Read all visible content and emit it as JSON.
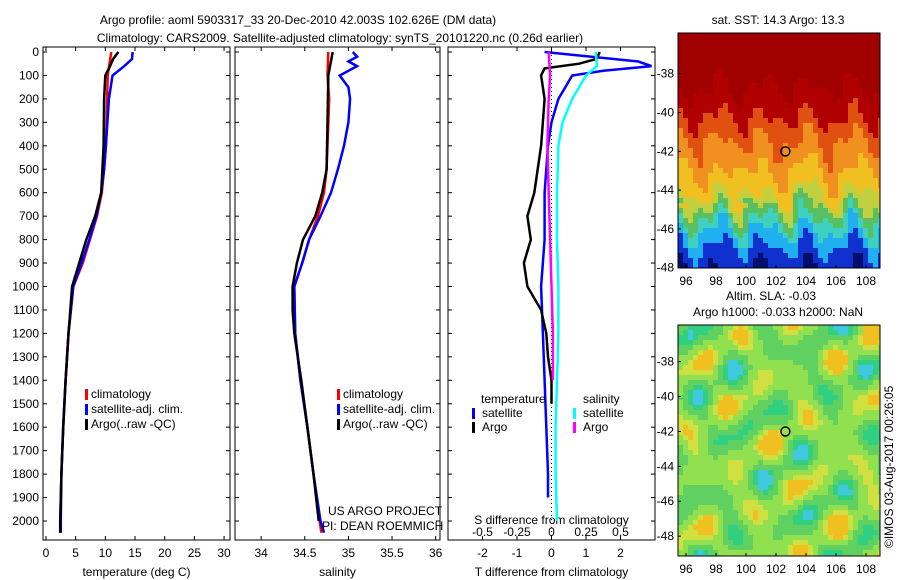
{
  "title_line1": "Argo profile: aoml 5903317_33 20-Dec-2010 42.003S 102.626E (DM data)",
  "title_line2": "Climatology: CARS2009. Satellite-adjusted climatology: synTS_20101220.nc (0.26d earlier)",
  "credit": "©IMOS 03-Aug-2017 00:26:05",
  "project_line1": "US ARGO PROJECT",
  "project_line2": "PI: DEAN ROEMMICH",
  "colors": {
    "climatology": "#ff0000",
    "satellite": "#0000ff",
    "argo": "#000000",
    "sal_satellite": "#00ffff",
    "sal_argo": "#ff00ff"
  },
  "chart_data": [
    {
      "type": "line",
      "xlabel": "temperature (deg C)",
      "ylabel": "",
      "xlim": [
        -0.5,
        31
      ],
      "ylim": [
        2050,
        0
      ],
      "xticks": [
        0,
        5,
        10,
        15,
        20,
        25,
        30
      ],
      "yticks": [
        0,
        100,
        200,
        300,
        400,
        500,
        600,
        700,
        800,
        900,
        1000,
        1100,
        1200,
        1300,
        1400,
        1500,
        1600,
        1700,
        1800,
        1900,
        2000
      ],
      "legend": [
        "climatology",
        "satellite-adj. clim.",
        "Argo(..raw -QC)"
      ],
      "series": [
        {
          "name": "climatology",
          "color": "#ff0000",
          "depth": [
            0,
            50,
            100,
            200,
            400,
            500,
            600,
            700,
            800,
            900,
            1000,
            1200,
            1400,
            1600,
            1800,
            2000,
            2050
          ],
          "values": [
            11,
            10.7,
            10.4,
            10.3,
            10.1,
            9.8,
            9.4,
            8.6,
            7.4,
            6.2,
            4.6,
            3.8,
            3.3,
            2.9,
            2.6,
            2.4,
            2.4
          ]
        },
        {
          "name": "satellite-adj. clim.",
          "color": "#0000ff",
          "depth": [
            0,
            30,
            60,
            100,
            200,
            400,
            500,
            600,
            700,
            800,
            900,
            1000,
            1200,
            1400,
            1600,
            1800,
            2000,
            2050
          ],
          "values": [
            14.6,
            14.5,
            13.2,
            11.2,
            10.6,
            10.1,
            9.8,
            9.3,
            8.5,
            7.3,
            6.0,
            4.6,
            3.8,
            3.3,
            2.9,
            2.6,
            2.5,
            2.5
          ]
        },
        {
          "name": "Argo(..raw -QC)",
          "color": "#000000",
          "depth": [
            0,
            30,
            60,
            100,
            200,
            400,
            600,
            700,
            800,
            900,
            1000,
            1100,
            1200,
            1400,
            1600,
            1800,
            2000,
            2050
          ],
          "values": [
            12.2,
            11.3,
            10.8,
            10.0,
            9.8,
            9.7,
            9.3,
            8.3,
            6.8,
            5.6,
            4.4,
            4.1,
            3.8,
            3.3,
            2.9,
            2.6,
            2.4,
            2.4
          ]
        }
      ]
    },
    {
      "type": "line",
      "xlabel": "salinity",
      "ylabel": "",
      "xlim": [
        33.7,
        36.05
      ],
      "ylim": [
        2050,
        0
      ],
      "xticks": [
        34,
        34.5,
        35,
        35.5,
        36
      ],
      "legend": [
        "climatology",
        "satellite-adj. clim.",
        "Argo(..raw -QC)"
      ],
      "series": [
        {
          "name": "climatology",
          "color": "#ff0000",
          "depth": [
            0,
            100,
            200,
            500,
            600,
            700,
            800,
            900,
            1000,
            1200,
            1400,
            1600,
            1800,
            2000,
            2050
          ],
          "values": [
            34.77,
            34.76,
            34.78,
            34.75,
            34.72,
            34.65,
            34.55,
            34.47,
            34.38,
            34.39,
            34.45,
            34.53,
            34.6,
            34.67,
            34.69
          ]
        },
        {
          "name": "satellite-adj. clim.",
          "color": "#0000ff",
          "depth": [
            0,
            20,
            40,
            60,
            100,
            150,
            200,
            300,
            400,
            500,
            600,
            700,
            800,
            900,
            1000,
            1200,
            1400,
            1600,
            1800,
            2000,
            2050
          ],
          "values": [
            35.05,
            35.1,
            35.0,
            35.1,
            34.9,
            35.0,
            35.02,
            35.0,
            34.95,
            34.88,
            34.8,
            34.68,
            34.55,
            34.47,
            34.38,
            34.39,
            34.45,
            34.53,
            34.6,
            34.68,
            34.72
          ]
        },
        {
          "name": "Argo(..raw -QC)",
          "color": "#000000",
          "depth": [
            0,
            100,
            300,
            500,
            600,
            700,
            800,
            900,
            1000,
            1100,
            1200,
            1400,
            1600,
            1800,
            2000
          ],
          "values": [
            34.82,
            34.77,
            34.76,
            34.75,
            34.7,
            34.62,
            34.48,
            34.41,
            34.36,
            34.36,
            34.38,
            34.46,
            34.53,
            34.6,
            34.66
          ]
        }
      ]
    },
    {
      "type": "line",
      "xlabel": "T difference from climatology",
      "xlabel2": "S difference from climatology",
      "xlim": [
        -3,
        3
      ],
      "xlim_s": [
        -0.75,
        0.75
      ],
      "ylim": [
        2050,
        0
      ],
      "xticks": [
        -2,
        -1,
        0,
        1,
        2
      ],
      "xticks_s": [
        -0.5,
        -0.25,
        0,
        0.25,
        0.5
      ],
      "xticklabels_s": [
        "-0.5",
        "-0.25",
        "0",
        "0.25",
        "0.5"
      ],
      "legend_temperature": "temperature",
      "legend_salinity": "salinity",
      "legend": [
        "satellite",
        "Argo",
        "satellite",
        "Argo"
      ],
      "series": [
        {
          "name": "T satellite",
          "axis": "T",
          "color": "#0000ff",
          "depth": [
            0,
            40,
            60,
            80,
            100,
            150,
            200,
            300,
            400,
            600,
            800,
            1000,
            1200,
            1400,
            1600,
            1800,
            1900
          ],
          "values": [
            -0.2,
            2.5,
            2.9,
            1.5,
            0.6,
            0.4,
            0.2,
            0,
            -0.1,
            -0.2,
            -0.2,
            -0.3,
            -0.25,
            -0.2,
            -0.15,
            -0.1,
            -0.1
          ]
        },
        {
          "name": "T Argo",
          "axis": "T",
          "color": "#000000",
          "depth": [
            0,
            30,
            50,
            70,
            100,
            200,
            400,
            600,
            700,
            800,
            900,
            1000,
            1100,
            1200,
            1300,
            1400,
            1500
          ],
          "values": [
            1.4,
            1.3,
            0.8,
            -0.2,
            -0.3,
            -0.2,
            -0.3,
            -0.5,
            -0.7,
            -0.6,
            -0.8,
            -0.7,
            -0.3,
            -0.15,
            -0.1,
            0,
            0
          ]
        },
        {
          "name": "S satellite",
          "axis": "S",
          "color": "#00ffff",
          "depth": [
            0,
            60,
            100,
            150,
            200,
            300,
            400,
            600,
            800,
            1000,
            1200,
            1400,
            1600,
            1800,
            2000
          ],
          "values": [
            0.32,
            0.33,
            0.25,
            0.2,
            0.15,
            0.08,
            0.05,
            0.04,
            0.04,
            0.05,
            0.05,
            0.04,
            0.03,
            0.03,
            0.04
          ]
        },
        {
          "name": "S Argo",
          "axis": "S",
          "color": "#ff00ff",
          "depth": [
            0,
            100,
            200,
            400,
            600,
            800,
            1000,
            1200,
            1400
          ],
          "values": [
            -0.02,
            -0.01,
            -0.02,
            -0.03,
            -0.02,
            -0.01,
            0,
            0.01,
            0.01
          ]
        }
      ]
    }
  ],
  "map_sst": {
    "title": "sat. SST: 14.3 Argo: 13.3",
    "xticks": [
      "96",
      "98",
      "100",
      "102",
      "104",
      "106",
      "108"
    ],
    "yticks": [
      "-38",
      "-40",
      "-42",
      "-44",
      "-46",
      "-48"
    ],
    "marker_lon": 102.626,
    "marker_lat": -42.003
  },
  "map_sla": {
    "title1": "Altim. SLA: -0.03",
    "title2": "Argo h1000: -0.033 h2000: NaN",
    "xticks": [
      "96",
      "98",
      "100",
      "102",
      "104",
      "106",
      "108"
    ],
    "yticks": [
      "-38",
      "-40",
      "-42",
      "-44",
      "-46",
      "-48"
    ],
    "marker_lon": 102.626,
    "marker_lat": -42.003
  }
}
